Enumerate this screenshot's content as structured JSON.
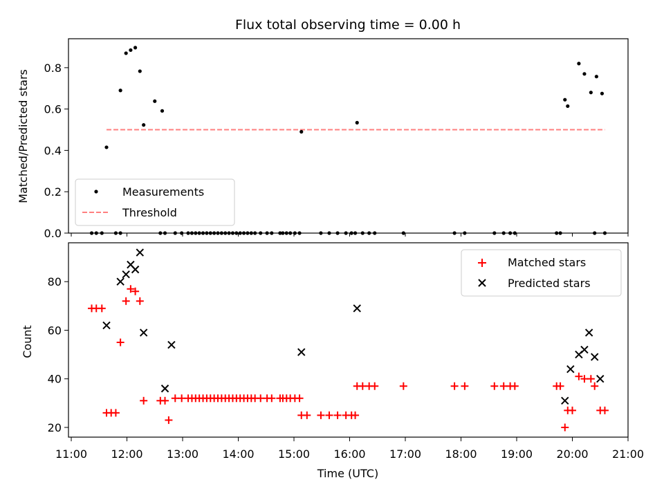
{
  "chart_data": [
    {
      "type": "scatter",
      "title": "Flux total observing time = 0.00 h",
      "xlabel": "",
      "ylabel": "Matched/Predicted stars",
      "xlim": [
        "10:57",
        "21:00"
      ],
      "ylim": [
        0,
        0.94
      ],
      "yticks": [
        0.0,
        0.2,
        0.4,
        0.6,
        0.8
      ],
      "ytick_labels": [
        "0.0",
        "0.2",
        "0.4",
        "0.6",
        "0.8"
      ],
      "legend_position": "lower-left",
      "series": [
        {
          "name": "Measurements",
          "marker": "dot",
          "color": "#000000",
          "x": [
            "11:38",
            "11:53",
            "11:59",
            "12:04",
            "12:09",
            "12:14",
            "12:18",
            "12:23",
            "12:30",
            "12:38",
            "12:45",
            "12:52",
            "12:59",
            "13:06",
            "13:12",
            "13:18",
            "13:25",
            "13:32",
            "13:38",
            "13:45",
            "13:52",
            "13:59",
            "14:06",
            "14:12",
            "14:18",
            "14:25",
            "14:32",
            "14:38",
            "14:45",
            "14:52",
            "14:59",
            "15:06",
            "15:08",
            "15:14",
            "15:20",
            "15:28",
            "15:36",
            "15:44",
            "15:50",
            "15:58",
            "16:05",
            "16:08",
            "16:12",
            "16:20",
            "16:28",
            "16:36",
            "16:44",
            "16:52",
            "17:00",
            "17:08",
            "17:15",
            "17:22",
            "17:30",
            "17:38",
            "17:45",
            "17:52",
            "18:00",
            "18:08",
            "18:15",
            "18:22",
            "18:30",
            "18:38",
            "18:45",
            "18:52",
            "19:00",
            "19:08",
            "19:15",
            "19:22",
            "19:30",
            "19:38",
            "19:45",
            "19:52",
            "19:55",
            "20:00",
            "20:07",
            "20:13",
            "20:20",
            "20:26",
            "20:32"
          ],
          "y": [
            0.415,
            0.69,
            0.87,
            0.885,
            0.897,
            0.783,
            0.523,
            0.0,
            0.638,
            0.591,
            0.0,
            0.0,
            0.0,
            0.0,
            0.0,
            0.0,
            0.0,
            0.0,
            0.0,
            0.0,
            0.0,
            0.0,
            0.0,
            0.0,
            0.0,
            0.0,
            0.0,
            0.0,
            0.0,
            0.0,
            0.0,
            0.0,
            0.49,
            0.0,
            0.0,
            0.0,
            0.0,
            0.0,
            0.0,
            0.0,
            0.0,
            0.534,
            0.0,
            0.0,
            0.0,
            0.0,
            0.0,
            0.0,
            0.0,
            0.0,
            0.0,
            0.0,
            0.0,
            0.0,
            0.0,
            0.0,
            0.0,
            0.0,
            0.0,
            0.0,
            0.0,
            0.0,
            0.0,
            0.0,
            0.0,
            0.0,
            0.0,
            0.0,
            0.0,
            0.0,
            0.0,
            0.645,
            0.614,
            0.0,
            0.82,
            0.77,
            0.68,
            0.757,
            0.675
          ]
        },
        {
          "name": "Threshold",
          "marker": "dashed-line",
          "color": "#ff7f7f",
          "x": [
            "11:38",
            "20:35"
          ],
          "y": [
            0.5,
            0.5
          ]
        }
      ],
      "zero_points_x": [
        "11:22",
        "11:27",
        "11:33",
        "11:48",
        "11:53",
        "12:36",
        "12:41",
        "12:52",
        "12:59",
        "13:06",
        "13:10",
        "13:14",
        "13:18",
        "13:22",
        "13:26",
        "13:30",
        "13:34",
        "13:38",
        "13:42",
        "13:46",
        "13:50",
        "13:54",
        "13:58",
        "14:02",
        "14:06",
        "14:10",
        "14:14",
        "14:18",
        "14:24",
        "14:31",
        "14:36",
        "14:45",
        "14:48",
        "14:52",
        "14:56",
        "15:01",
        "15:06",
        "15:29",
        "15:38",
        "15:47",
        "15:56",
        "16:02",
        "16:06",
        "16:14",
        "16:21",
        "16:27",
        "16:58",
        "17:53",
        "18:04",
        "18:36",
        "18:46",
        "18:53",
        "18:58",
        "19:43",
        "19:47",
        "20:24",
        "20:35"
      ]
    },
    {
      "type": "scatter",
      "title": "",
      "xlabel": "Time (UTC)",
      "ylabel": "Count",
      "xlim": [
        "10:57",
        "21:00"
      ],
      "ylim": [
        16,
        96
      ],
      "yticks": [
        20,
        40,
        60,
        80
      ],
      "ytick_labels": [
        "20",
        "40",
        "60",
        "80"
      ],
      "xticks": [
        "11:00",
        "12:00",
        "13:00",
        "14:00",
        "15:00",
        "16:00",
        "17:00",
        "18:00",
        "19:00",
        "20:00",
        "21:00"
      ],
      "legend_position": "top-right",
      "series": [
        {
          "name": "Matched stars",
          "marker": "plus",
          "color": "#ff0000",
          "x": [
            "11:22",
            "11:27",
            "11:33",
            "11:38",
            "11:43",
            "11:48",
            "11:53",
            "11:59",
            "12:04",
            "12:09",
            "12:14",
            "12:18",
            "12:36",
            "12:41",
            "12:45",
            "12:52",
            "12:59",
            "13:06",
            "13:10",
            "13:14",
            "13:18",
            "13:22",
            "13:26",
            "13:30",
            "13:34",
            "13:38",
            "13:42",
            "13:46",
            "13:50",
            "13:54",
            "13:58",
            "14:02",
            "14:06",
            "14:10",
            "14:14",
            "14:18",
            "14:24",
            "14:31",
            "14:36",
            "14:45",
            "14:48",
            "14:52",
            "14:56",
            "15:01",
            "15:06",
            "15:08",
            "15:14",
            "15:29",
            "15:38",
            "15:47",
            "15:56",
            "16:02",
            "16:06",
            "16:08",
            "16:14",
            "16:21",
            "16:27",
            "16:58",
            "17:53",
            "18:04",
            "18:36",
            "18:46",
            "18:53",
            "18:58",
            "19:43",
            "19:47",
            "19:52",
            "19:55",
            "20:00",
            "20:07",
            "20:13",
            "20:20",
            "20:24",
            "20:30",
            "20:35"
          ],
          "y": [
            69,
            69,
            69,
            26,
            26,
            26,
            55,
            72,
            77,
            76,
            72,
            31,
            31,
            31,
            23,
            32,
            32,
            32,
            32,
            32,
            32,
            32,
            32,
            32,
            32,
            32,
            32,
            32,
            32,
            32,
            32,
            32,
            32,
            32,
            32,
            32,
            32,
            32,
            32,
            32,
            32,
            32,
            32,
            32,
            32,
            25,
            25,
            25,
            25,
            25,
            25,
            25,
            25,
            37,
            37,
            37,
            37,
            37,
            37,
            37,
            37,
            37,
            37,
            37,
            37,
            37,
            20,
            27,
            27,
            41,
            40,
            40,
            37,
            27,
            27
          ]
        },
        {
          "name": "Predicted stars",
          "marker": "x",
          "color": "#000000",
          "x": [
            "11:38",
            "11:53",
            "11:59",
            "12:04",
            "12:09",
            "12:14",
            "12:18",
            "12:41",
            "12:48",
            "15:08",
            "16:08",
            "19:52",
            "19:58",
            "20:07",
            "20:13",
            "20:18",
            "20:24",
            "20:30"
          ],
          "y": [
            62,
            80,
            83,
            87,
            85,
            92,
            59,
            36,
            54,
            51,
            69,
            31,
            44,
            50,
            52,
            59,
            49,
            40
          ]
        }
      ]
    }
  ]
}
